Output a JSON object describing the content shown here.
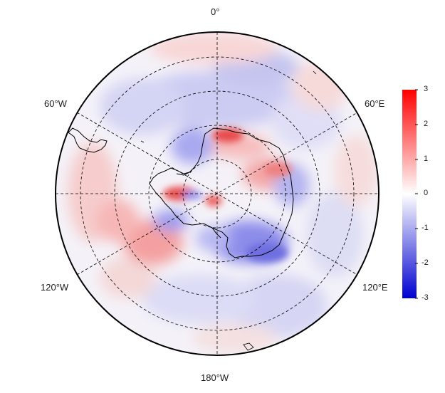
{
  "map": {
    "projection": "south-polar-stereographic",
    "grid_longitudes": [
      0,
      45,
      90,
      135,
      180,
      225,
      270,
      315
    ],
    "grid_latitude_rings": 4,
    "longitude_labels": {
      "top": "0°",
      "upper_left": "60°W",
      "upper_right": "60°E",
      "lower_left": "120°W",
      "lower_right": "120°E",
      "bottom": "180°W"
    },
    "colorbar": {
      "min": -3,
      "max": 3,
      "ticks": [
        "3",
        "2",
        "1",
        "0",
        "-1",
        "-2",
        "-3"
      ],
      "colors": {
        "low": "#0000d0",
        "mid": "#ffffff",
        "high": "#ff0000"
      }
    },
    "anomaly_regions_note": "red = positive anomaly, blue = negative anomaly",
    "grid_line_color": "#000000",
    "coastline_color": "#000000"
  }
}
